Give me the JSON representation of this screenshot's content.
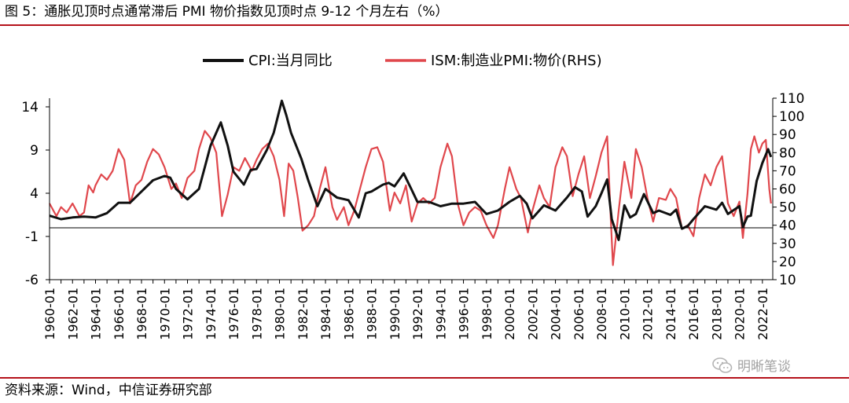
{
  "header": {
    "title": "图 5：通胀见顶时点通常滞后 PMI 物价指数见顶时点 9-12 个月左右（%）"
  },
  "footer": {
    "source": "资料来源：Wind，中信证券研究部"
  },
  "watermark": {
    "text": "明晰笔谈",
    "icon": "wechat-icon"
  },
  "chart_data": {
    "type": "line",
    "legend_position": "top-center",
    "grid": false,
    "y_left": {
      "ticks": [
        14,
        9,
        4,
        -1,
        -6
      ],
      "range": [
        -6,
        15
      ]
    },
    "y_right": {
      "label": "RHS",
      "ticks": [
        110,
        100,
        90,
        80,
        70,
        60,
        50,
        40,
        30,
        20,
        10
      ],
      "range": [
        10,
        110
      ]
    },
    "x_ticks": [
      "1960-01",
      "1962-01",
      "1964-01",
      "1966-01",
      "1968-01",
      "1970-01",
      "1972-01",
      "1974-01",
      "1976-01",
      "1978-01",
      "1980-01",
      "1982-01",
      "1984-01",
      "1986-01",
      "1988-01",
      "1990-01",
      "1992-01",
      "1994-01",
      "1996-01",
      "1998-01",
      "2000-01",
      "2002-01",
      "2004-01",
      "2006-01",
      "2008-01",
      "2010-01",
      "2012-01",
      "2014-01",
      "2016-01",
      "2018-01",
      "2020-01",
      "2022-01"
    ],
    "series": [
      {
        "name": "CPI:当月同比",
        "axis": "left",
        "color": "#111111",
        "points": [
          [
            1960.0,
            1.4
          ],
          [
            1961.0,
            1.0
          ],
          [
            1962.0,
            1.2
          ],
          [
            1963.0,
            1.3
          ],
          [
            1964.0,
            1.2
          ],
          [
            1965.0,
            1.7
          ],
          [
            1966.0,
            2.9
          ],
          [
            1967.0,
            2.9
          ],
          [
            1968.0,
            4.2
          ],
          [
            1969.0,
            5.5
          ],
          [
            1970.0,
            6.0
          ],
          [
            1970.5,
            5.8
          ],
          [
            1971.0,
            4.5
          ],
          [
            1972.0,
            3.3
          ],
          [
            1973.0,
            4.5
          ],
          [
            1973.5,
            7.0
          ],
          [
            1974.0,
            9.5
          ],
          [
            1974.9,
            12.2
          ],
          [
            1975.5,
            9.5
          ],
          [
            1976.0,
            6.5
          ],
          [
            1976.9,
            5.0
          ],
          [
            1977.5,
            6.7
          ],
          [
            1978.0,
            6.8
          ],
          [
            1978.9,
            9.0
          ],
          [
            1979.5,
            11.0
          ],
          [
            1980.2,
            14.7
          ],
          [
            1980.6,
            13.0
          ],
          [
            1981.0,
            11.0
          ],
          [
            1981.9,
            8.0
          ],
          [
            1982.5,
            5.5
          ],
          [
            1983.3,
            2.5
          ],
          [
            1984.0,
            4.5
          ],
          [
            1985.0,
            3.5
          ],
          [
            1986.0,
            3.2
          ],
          [
            1986.9,
            1.2
          ],
          [
            1987.5,
            4.0
          ],
          [
            1988.0,
            4.2
          ],
          [
            1989.0,
            5.0
          ],
          [
            1989.5,
            5.2
          ],
          [
            1990.0,
            4.8
          ],
          [
            1990.8,
            6.3
          ],
          [
            1991.5,
            4.4
          ],
          [
            1992.0,
            3.0
          ],
          [
            1993.0,
            3.0
          ],
          [
            1994.0,
            2.5
          ],
          [
            1995.0,
            2.8
          ],
          [
            1996.0,
            2.8
          ],
          [
            1997.0,
            3.0
          ],
          [
            1998.0,
            1.6
          ],
          [
            1999.0,
            2.0
          ],
          [
            2000.0,
            3.0
          ],
          [
            2000.9,
            3.7
          ],
          [
            2001.5,
            2.8
          ],
          [
            2002.0,
            1.1
          ],
          [
            2003.0,
            2.6
          ],
          [
            2004.0,
            2.0
          ],
          [
            2005.0,
            3.5
          ],
          [
            2005.7,
            4.7
          ],
          [
            2006.3,
            4.2
          ],
          [
            2006.8,
            1.3
          ],
          [
            2007.5,
            2.5
          ],
          [
            2008.0,
            4.0
          ],
          [
            2008.5,
            5.6
          ],
          [
            2008.9,
            1.0
          ],
          [
            2009.5,
            -1.4
          ],
          [
            2010.0,
            2.6
          ],
          [
            2010.5,
            1.2
          ],
          [
            2011.0,
            1.6
          ],
          [
            2011.7,
            3.9
          ],
          [
            2012.5,
            1.7
          ],
          [
            2013.0,
            2.0
          ],
          [
            2014.0,
            1.5
          ],
          [
            2014.5,
            2.1
          ],
          [
            2015.0,
            -0.1
          ],
          [
            2015.5,
            0.2
          ],
          [
            2016.0,
            1.0
          ],
          [
            2017.0,
            2.5
          ],
          [
            2018.0,
            2.1
          ],
          [
            2018.5,
            2.9
          ],
          [
            2019.0,
            1.6
          ],
          [
            2020.0,
            2.5
          ],
          [
            2020.3,
            0.1
          ],
          [
            2020.7,
            1.3
          ],
          [
            2021.0,
            1.4
          ],
          [
            2021.5,
            5.4
          ],
          [
            2022.0,
            7.5
          ],
          [
            2022.5,
            9.1
          ],
          [
            2022.75,
            8.2
          ]
        ]
      },
      {
        "name": "ISM:制造业PMI:物价",
        "axis": "right",
        "color": "#e0474c",
        "points": [
          [
            1960.0,
            52
          ],
          [
            1960.6,
            45
          ],
          [
            1961.0,
            50
          ],
          [
            1961.5,
            47
          ],
          [
            1962.0,
            52
          ],
          [
            1962.6,
            45
          ],
          [
            1963.0,
            47
          ],
          [
            1963.4,
            62
          ],
          [
            1963.8,
            58
          ],
          [
            1964.0,
            62
          ],
          [
            1964.5,
            68
          ],
          [
            1965.0,
            65
          ],
          [
            1965.5,
            70
          ],
          [
            1966.0,
            82
          ],
          [
            1966.5,
            76
          ],
          [
            1967.0,
            52
          ],
          [
            1967.5,
            62
          ],
          [
            1968.0,
            65
          ],
          [
            1968.5,
            75
          ],
          [
            1969.0,
            82
          ],
          [
            1969.5,
            79
          ],
          [
            1970.0,
            72
          ],
          [
            1970.6,
            60
          ],
          [
            1971.0,
            63
          ],
          [
            1971.5,
            55
          ],
          [
            1972.0,
            66
          ],
          [
            1972.6,
            70
          ],
          [
            1973.0,
            82
          ],
          [
            1973.5,
            92
          ],
          [
            1974.0,
            88
          ],
          [
            1974.5,
            80
          ],
          [
            1975.0,
            45
          ],
          [
            1975.5,
            57
          ],
          [
            1976.0,
            72
          ],
          [
            1976.5,
            70
          ],
          [
            1977.0,
            77
          ],
          [
            1977.6,
            70
          ],
          [
            1978.0,
            76
          ],
          [
            1978.5,
            82
          ],
          [
            1979.0,
            85
          ],
          [
            1979.5,
            78
          ],
          [
            1980.0,
            65
          ],
          [
            1980.4,
            45
          ],
          [
            1980.8,
            74
          ],
          [
            1981.2,
            70
          ],
          [
            1981.6,
            55
          ],
          [
            1982.0,
            37
          ],
          [
            1982.5,
            40
          ],
          [
            1983.0,
            45
          ],
          [
            1983.5,
            60
          ],
          [
            1984.0,
            72
          ],
          [
            1984.6,
            50
          ],
          [
            1985.0,
            43
          ],
          [
            1985.6,
            50
          ],
          [
            1986.0,
            40
          ],
          [
            1986.5,
            48
          ],
          [
            1987.0,
            60
          ],
          [
            1987.5,
            72
          ],
          [
            1988.0,
            82
          ],
          [
            1988.5,
            83
          ],
          [
            1989.0,
            75
          ],
          [
            1989.6,
            48
          ],
          [
            1990.0,
            58
          ],
          [
            1990.5,
            52
          ],
          [
            1991.0,
            62
          ],
          [
            1991.5,
            42
          ],
          [
            1992.0,
            52
          ],
          [
            1992.5,
            55
          ],
          [
            1993.0,
            52
          ],
          [
            1993.5,
            55
          ],
          [
            1994.0,
            72
          ],
          [
            1994.6,
            85
          ],
          [
            1995.0,
            78
          ],
          [
            1995.5,
            52
          ],
          [
            1996.0,
            40
          ],
          [
            1996.5,
            47
          ],
          [
            1997.0,
            50
          ],
          [
            1997.5,
            48
          ],
          [
            1998.0,
            40
          ],
          [
            1998.6,
            33
          ],
          [
            1999.0,
            40
          ],
          [
            1999.6,
            60
          ],
          [
            2000.0,
            72
          ],
          [
            2000.6,
            60
          ],
          [
            2001.0,
            55
          ],
          [
            2001.6,
            36
          ],
          [
            2002.0,
            48
          ],
          [
            2002.6,
            62
          ],
          [
            2003.0,
            55
          ],
          [
            2003.5,
            50
          ],
          [
            2004.0,
            72
          ],
          [
            2004.6,
            83
          ],
          [
            2005.0,
            78
          ],
          [
            2005.5,
            56
          ],
          [
            2006.0,
            68
          ],
          [
            2006.5,
            78
          ],
          [
            2007.0,
            55
          ],
          [
            2007.5,
            67
          ],
          [
            2008.0,
            80
          ],
          [
            2008.5,
            89
          ],
          [
            2008.8,
            45
          ],
          [
            2009.0,
            18
          ],
          [
            2009.5,
            48
          ],
          [
            2010.0,
            75
          ],
          [
            2010.6,
            55
          ],
          [
            2011.0,
            82
          ],
          [
            2011.5,
            72
          ],
          [
            2012.0,
            55
          ],
          [
            2012.5,
            42
          ],
          [
            2013.0,
            55
          ],
          [
            2013.6,
            54
          ],
          [
            2014.0,
            60
          ],
          [
            2014.5,
            55
          ],
          [
            2015.0,
            38
          ],
          [
            2015.5,
            40
          ],
          [
            2016.0,
            34
          ],
          [
            2016.5,
            55
          ],
          [
            2017.0,
            68
          ],
          [
            2017.5,
            62
          ],
          [
            2018.0,
            72
          ],
          [
            2018.5,
            78
          ],
          [
            2019.0,
            52
          ],
          [
            2019.5,
            45
          ],
          [
            2020.0,
            53
          ],
          [
            2020.3,
            33
          ],
          [
            2020.7,
            57
          ],
          [
            2021.0,
            82
          ],
          [
            2021.3,
            89
          ],
          [
            2021.7,
            80
          ],
          [
            2022.0,
            85
          ],
          [
            2022.3,
            87
          ],
          [
            2022.6,
            60
          ],
          [
            2022.75,
            52
          ]
        ]
      }
    ]
  }
}
